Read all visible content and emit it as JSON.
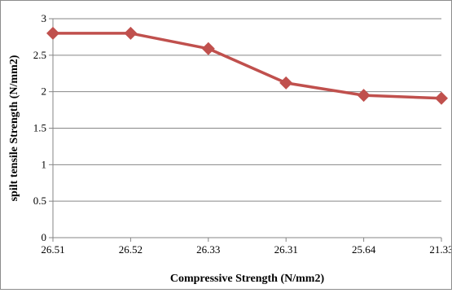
{
  "chart_data": {
    "type": "line",
    "categories": [
      "26.51",
      "26.52",
      "26.33",
      "26.31",
      "25.64",
      "21.33"
    ],
    "series": [
      {
        "values": [
          2.8,
          2.8,
          2.59,
          2.12,
          1.95,
          1.91
        ],
        "color": "#c0504d",
        "marker": "diamond"
      }
    ],
    "xlabel": "Compressive Strength (N/mm2)",
    "ylabel": "spilt tensile Strength (N/mm2)",
    "ylim": [
      0,
      3
    ],
    "yticks": [
      "0",
      "0.5",
      "1",
      "1.5",
      "2",
      "2.5",
      "3"
    ],
    "grid": true,
    "legend": "none"
  }
}
